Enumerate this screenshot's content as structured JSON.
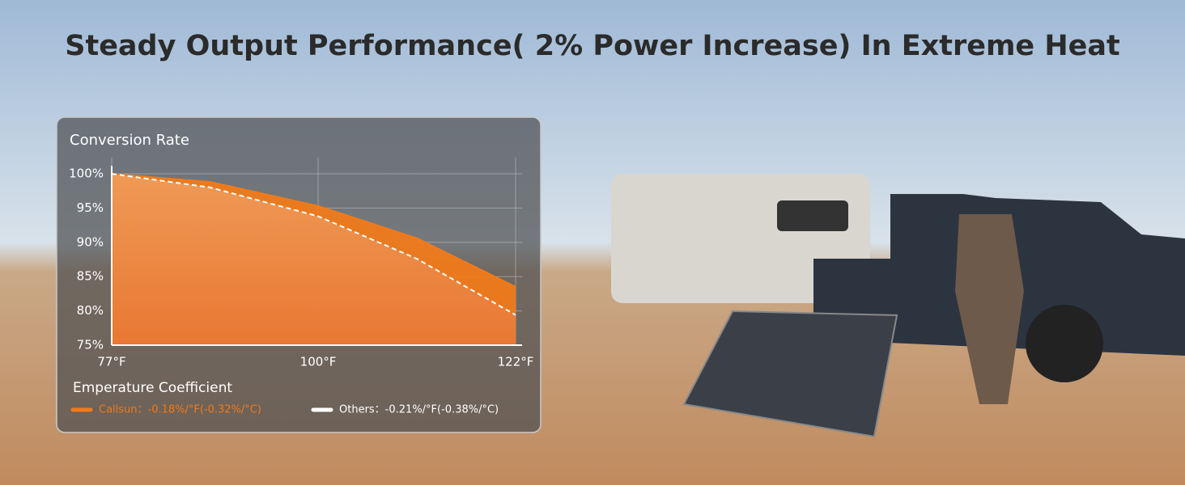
{
  "title": "Steady Output Performance( 2% Power Increase) In Extreme Heat",
  "chart_data": {
    "type": "area",
    "y_label": "Conversion Rate",
    "legend_title": "Emperature Coefficient",
    "x": [
      77,
      88,
      100,
      111,
      122
    ],
    "xlim": [
      77,
      122
    ],
    "xticks": [
      {
        "value": 77,
        "label": "77°F"
      },
      {
        "value": 100,
        "label": "100°F"
      },
      {
        "value": 122,
        "label": "122°F"
      }
    ],
    "ylim": [
      75,
      100
    ],
    "yticks": [
      {
        "value": 75,
        "label": "75%"
      },
      {
        "value": 80,
        "label": "80%"
      },
      {
        "value": 85,
        "label": "85%"
      },
      {
        "value": 90,
        "label": "90%"
      },
      {
        "value": 95,
        "label": "95%"
      },
      {
        "value": 100,
        "label": "100%"
      }
    ],
    "grid": true,
    "series": [
      {
        "name": "Callsun：-0.18%/°F(-0.32%/°C)",
        "color": "#f07a1a",
        "values": [
          100,
          98.8,
          95.3,
          90.6,
          83.5
        ]
      },
      {
        "name": "Others：-0.21%/°F(-0.38%/°C)",
        "color": "#ffffff",
        "values": [
          100,
          98,
          93.8,
          87.6,
          79.4
        ]
      }
    ]
  }
}
